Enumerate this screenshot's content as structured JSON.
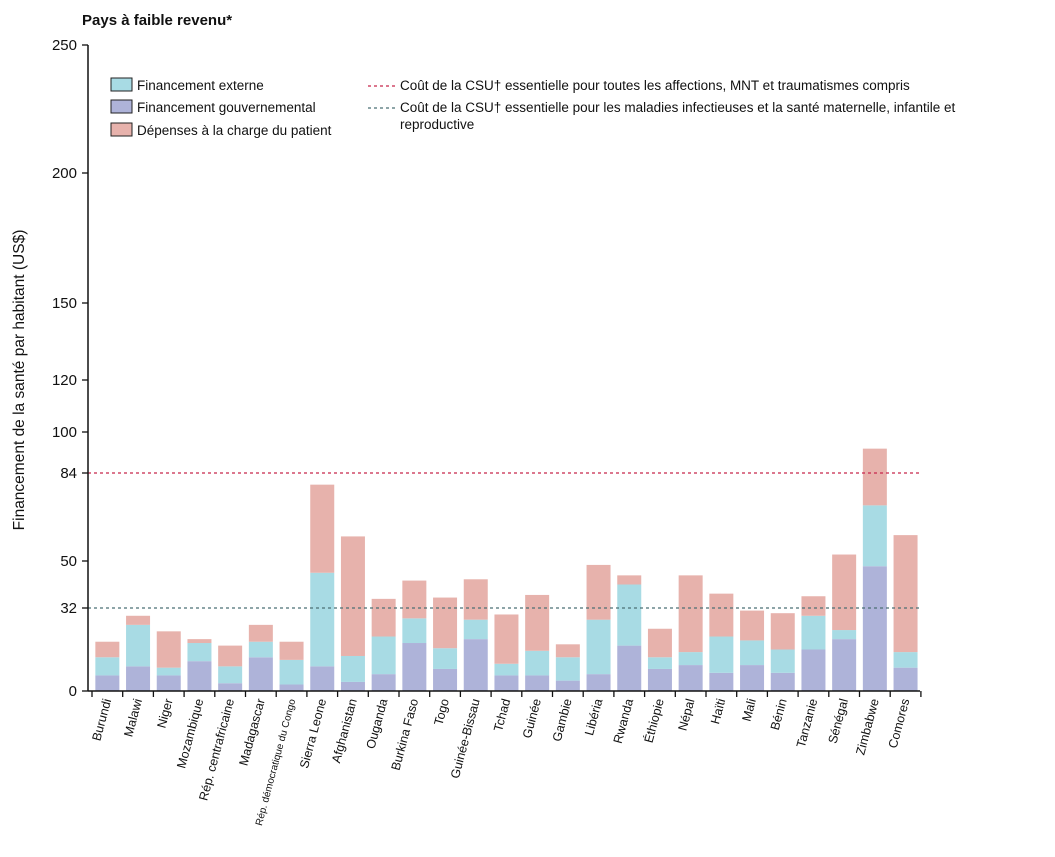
{
  "chart_data": {
    "type": "bar",
    "stacked": true,
    "title": "Pays à faible revenu*",
    "ylabel": "Financement de la santé par habitant (US$)",
    "xlabel": "",
    "ylim": [
      0,
      250
    ],
    "yticks": [
      0,
      32,
      50,
      84,
      100,
      120,
      150,
      200,
      250
    ],
    "categories": [
      "Burundi",
      "Malawi",
      "Niger",
      "Mozambique",
      "Rép. centrafricaine",
      "Madagascar",
      "Rép. démocratique du Congo",
      "Sierra Leone",
      "Afghanistan",
      "Ouganda",
      "Burkina Faso",
      "Togo",
      "Guinée-Bissau",
      "Tchad",
      "Guinée",
      "Gambie",
      "Libéria",
      "Rwanda",
      "Éthiopie",
      "Népal",
      "Haïti",
      "Mali",
      "Bénin",
      "Tanzanie",
      "Sénégal",
      "Zimbabwe",
      "Comores"
    ],
    "series": [
      {
        "name": "Financement gouvernemental",
        "color": "#aeb3d9",
        "values": [
          6,
          9.5,
          6,
          11.5,
          3,
          13,
          2.5,
          9.5,
          3.5,
          6.5,
          18.5,
          8.5,
          20,
          6,
          6,
          4,
          6.5,
          17.5,
          8.5,
          10,
          7,
          10,
          7,
          16,
          20,
          48,
          9
        ]
      },
      {
        "name": "Financement externe",
        "color": "#a8dbe4",
        "values": [
          7,
          16,
          3,
          7,
          6.5,
          6,
          9.5,
          36,
          10,
          14.5,
          9.5,
          8,
          7.5,
          4.5,
          9.5,
          9,
          21,
          23.5,
          4.5,
          5,
          14,
          9.5,
          9,
          13,
          3.5,
          23.5,
          6
        ]
      },
      {
        "name": "Dépenses à la charge du patient",
        "color": "#e7b2ac",
        "values": [
          6,
          3.5,
          14,
          1.5,
          8,
          6.5,
          7,
          34,
          46,
          14.5,
          14.5,
          19.5,
          15.5,
          19,
          21.5,
          5,
          21,
          3.5,
          11,
          29.5,
          16.5,
          11.5,
          14,
          7.5,
          29,
          22,
          45
        ]
      }
    ],
    "reference_lines": [
      {
        "value": 84,
        "color": "#c8264b",
        "label": "Coût de la CSU† essentielle pour toutes les affections, MNT et traumatismes compris"
      },
      {
        "value": 32,
        "color": "#4b6f73",
        "label": "Coût de la CSU† essentielle pour les maladies infectieuses et la santé maternelle, infantile et reproductive"
      }
    ],
    "legend_order": [
      "Financement externe",
      "Financement gouvernemental",
      "Dépenses à la charge du patient"
    ],
    "legend_position": "top-left",
    "grid": false
  }
}
